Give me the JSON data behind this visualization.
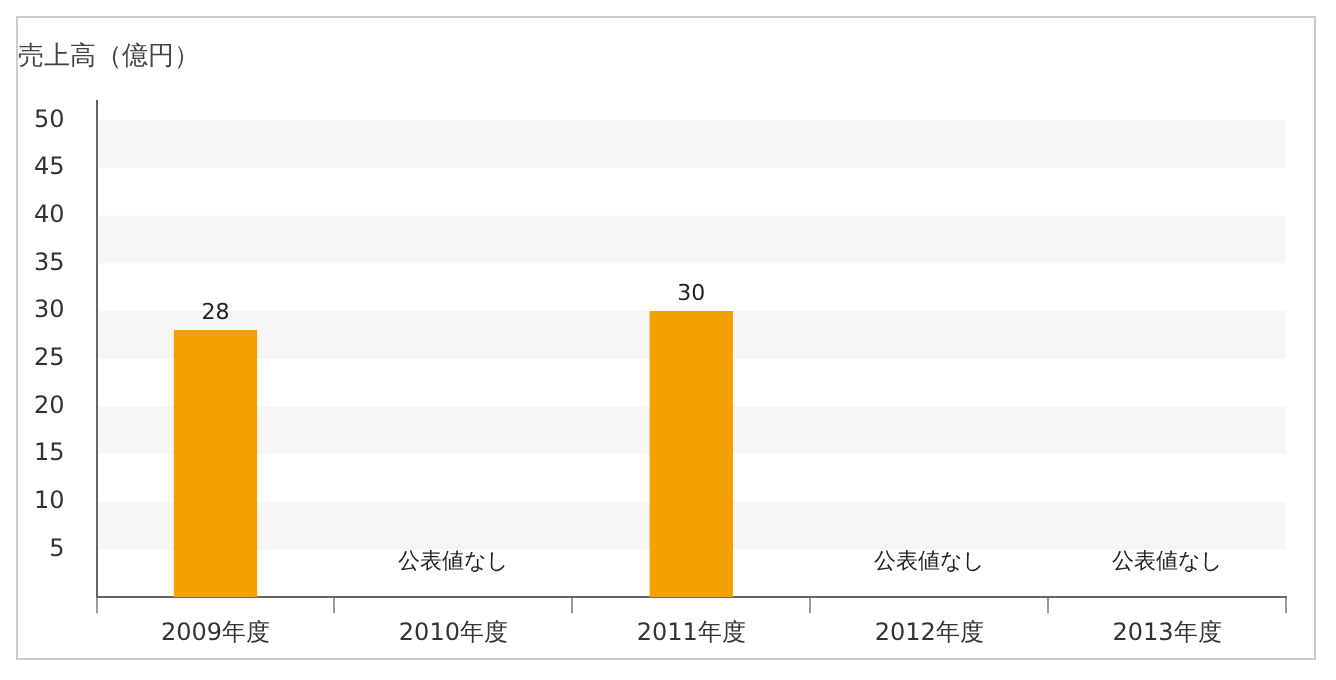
{
  "chart_data": {
    "type": "bar",
    "ylabel": "売上高（億円）",
    "categories": [
      "2009年度",
      "2010年度",
      "2011年度",
      "2012年度",
      "2013年度"
    ],
    "values": [
      28,
      null,
      30,
      null,
      null
    ],
    "value_labels": [
      "28",
      "公表値なし",
      "30",
      "公表値なし",
      "公表値なし"
    ],
    "color": "#f5a000",
    "ylim": [
      0,
      52
    ],
    "yticks": [
      5,
      10,
      15,
      20,
      25,
      30,
      35,
      40,
      45,
      50
    ],
    "legend": false
  }
}
